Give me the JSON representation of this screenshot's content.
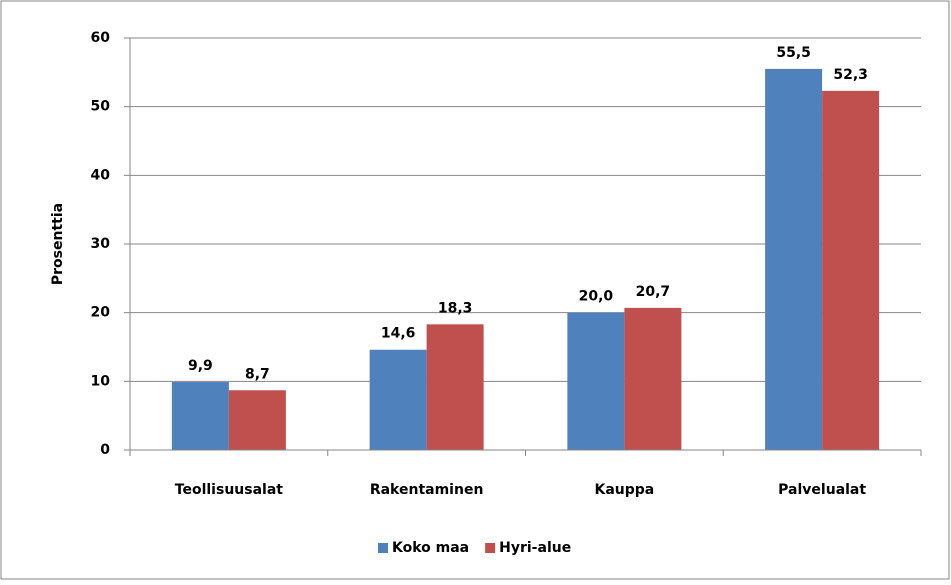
{
  "chart_data": {
    "type": "bar",
    "y_label": "Prosenttia",
    "categories": [
      "Teollisuusalat",
      "Rakentaminen",
      "Kauppa",
      "Palvelualat"
    ],
    "series": [
      {
        "name": "Koko maa",
        "color": "#4f81bd",
        "values": [
          9.9,
          14.6,
          20.0,
          55.5
        ],
        "value_labels": [
          "9,9",
          "14,6",
          "20,0",
          "55,5"
        ]
      },
      {
        "name": "Hyri-alue",
        "color": "#c0504d",
        "values": [
          8.7,
          18.3,
          20.7,
          52.3
        ],
        "value_labels": [
          "8,7",
          "18,3",
          "20,7",
          "52,3"
        ]
      }
    ],
    "ylim": [
      0,
      60
    ],
    "yticks": [
      0,
      10,
      20,
      30,
      40,
      50,
      60
    ],
    "grid": true,
    "legend": "bottom"
  }
}
